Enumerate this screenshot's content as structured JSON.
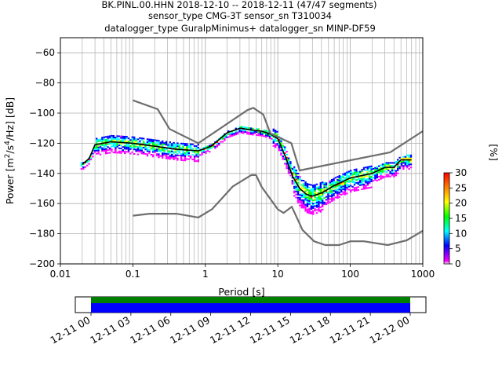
{
  "title": {
    "line1": "BK.PINL.00.HHN   2018-12-10 -- 2018-12-11  (47/47 segments)",
    "line2": "sensor_type CMG-3T sensor_sn T310034",
    "line3": "datalogger_type GuralpMinimus+ datalogger_sn MINP-DF59"
  },
  "chart_data": [
    {
      "type": "heatmap",
      "subtype": "probabilistic power spectral density",
      "title": "BK.PINL.00.HHN   2018-12-10 -- 2018-12-11  (47/47 segments)",
      "xlabel": "Period [s]",
      "ylabel": "Power [m²/s⁴/Hz] [dB]",
      "xscale": "log",
      "xlim": [
        0.01,
        1000
      ],
      "ylim": [
        -200,
        -50
      ],
      "x_ticks": [
        "0.01",
        "0.1",
        "1",
        "10",
        "100",
        "1000"
      ],
      "y_ticks": [
        "−60",
        "−80",
        "−100",
        "−120",
        "−140",
        "−160",
        "−180",
        "−200"
      ],
      "grid": true,
      "colorbar": {
        "label": "[%]",
        "range": [
          0,
          30
        ],
        "ticks": [
          "0",
          "5",
          "10",
          "15",
          "20",
          "25",
          "30"
        ],
        "colormap": [
          "#ffffff",
          "#ff00ff",
          "#0000ff",
          "#00ffff",
          "#00ff00",
          "#ffff00",
          "#ff8000",
          "#ff0000"
        ]
      },
      "series": [
        {
          "name": "",
          "role": "mean/mode curve",
          "color": "#000000",
          "x": [
            0.02,
            0.025,
            0.03,
            0.05,
            0.1,
            0.2,
            0.4,
            0.8,
            1.2,
            2,
            3,
            4,
            6,
            8,
            10,
            13,
            16,
            20,
            25,
            30,
            40,
            60,
            100,
            200,
            300,
            400,
            500,
            700
          ],
          "y": [
            -134,
            -130,
            -121,
            -119,
            -120,
            -122,
            -124,
            -125,
            -122,
            -113,
            -110,
            -111,
            -112,
            -114,
            -117,
            -130,
            -142,
            -150,
            -154,
            -155,
            -153,
            -148,
            -143,
            -140,
            -136,
            -136,
            -131,
            -131
          ]
        },
        {
          "name": "",
          "role": "noise model upper",
          "color": "#6e6e6e",
          "x": [
            0.1,
            0.22,
            0.32,
            0.8,
            3.8,
            4.6,
            6.3,
            7.9,
            15.4,
            20,
            354.8,
            1000
          ],
          "y": [
            -91.5,
            -97.4,
            -110.5,
            -120,
            -98,
            -96.5,
            -101,
            -113.5,
            -120,
            -138,
            -126,
            -112
          ]
        },
        {
          "name": "",
          "role": "noise model lower",
          "color": "#6e6e6e",
          "x": [
            0.1,
            0.17,
            0.4,
            0.8,
            1.24,
            2.4,
            4.3,
            5,
            6,
            10,
            12,
            15.6,
            21.9,
            31.6,
            45,
            70,
            101,
            154,
            328,
            600,
            1000
          ],
          "y": [
            -168,
            -166.7,
            -166.7,
            -169.2,
            -163.7,
            -148.6,
            -141.1,
            -141.1,
            -149,
            -163.8,
            -166.2,
            -162.1,
            -177.5,
            -185,
            -187.5,
            -187.5,
            -185,
            -185,
            -187.5,
            -184.4,
            -178
          ]
        }
      ]
    },
    {
      "type": "timeline",
      "x_ticks": [
        "12-11 00",
        "12-11 03",
        "12-11 06",
        "12-11 09",
        "12-11 12",
        "12-11 15",
        "12-11 18",
        "12-11 21",
        "12-12 00"
      ],
      "bands": [
        {
          "name": "",
          "color": "#008000",
          "start": "12-11 00",
          "end": "12-12 00"
        },
        {
          "name": "",
          "color": "#0000ff",
          "start": "12-11 00",
          "end": "12-12 00"
        }
      ]
    }
  ]
}
